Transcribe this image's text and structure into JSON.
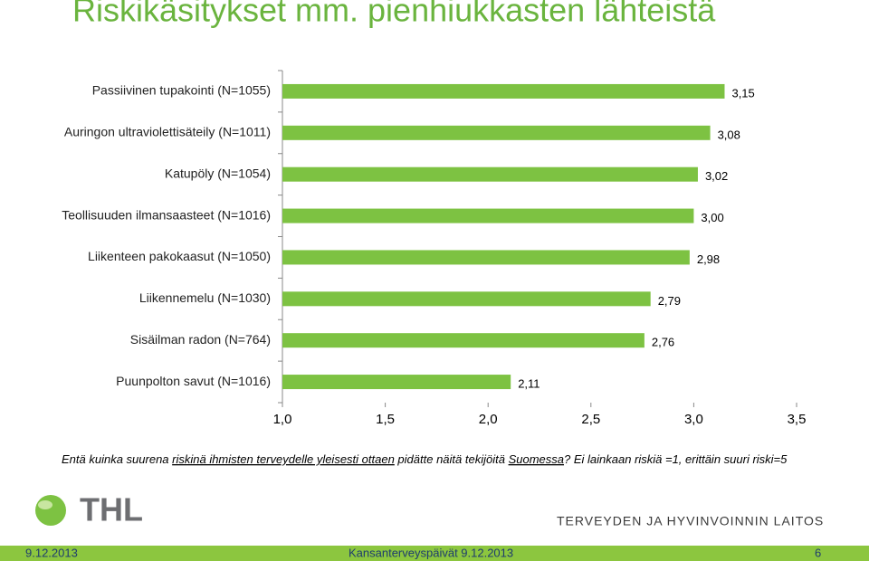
{
  "slide": {
    "title": "Riskikäsitykset mm. pienhiukkasten lähteistä",
    "caption": [
      {
        "text": "Entä kuinka suurena ",
        "underline": false
      },
      {
        "text": "riskinä ihmisten terveydelle yleisesti ottaen",
        "underline": true
      },
      {
        "text": " pidätte näitä tekijöitä ",
        "underline": false
      },
      {
        "text": "Suomessa",
        "underline": true
      },
      {
        "text": "? Ei lainkaan riskiä =1, erittäin suuri riski=5",
        "underline": false
      }
    ],
    "logo_text": "THL",
    "organization": "TERVEYDEN JA HYVINVOINNIN LAITOS",
    "footer": {
      "date": "9.12.2013",
      "event": "Kansanterveyspäivät  9.12.2013",
      "page": 6
    }
  },
  "chart_data": {
    "type": "bar",
    "orientation": "horizontal",
    "categories": [
      "Passiivinen tupakointi (N=1055)",
      "Auringon ultraviolettisäteily (N=1011)",
      "Katupöly (N=1054)",
      "Teollisuuden ilmansaasteet (N=1016)",
      "Liikenteen pakokaasut (N=1050)",
      "Liikennemelu (N=1030)",
      "Sisäilman radon (N=764)",
      "Puunpolton savut (N=1016)"
    ],
    "values": [
      3.15,
      3.08,
      3.02,
      3.0,
      2.98,
      2.79,
      2.76,
      2.11
    ],
    "value_labels": [
      "3,15",
      "3,08",
      "3,02",
      "3,00",
      "2,98",
      "2,79",
      "2,76",
      "2,11"
    ],
    "color": "#7dc242",
    "xlim": [
      1,
      3.5
    ],
    "xticks": [
      {
        "value": 1,
        "label": "1,0"
      },
      {
        "value": 1.5,
        "label": "1,5"
      },
      {
        "value": 2,
        "label": "2,0"
      },
      {
        "value": 2.5,
        "label": "2,5"
      },
      {
        "value": 3,
        "label": "3,0"
      },
      {
        "value": 3.5,
        "label": "3,5"
      }
    ],
    "grid": false
  }
}
